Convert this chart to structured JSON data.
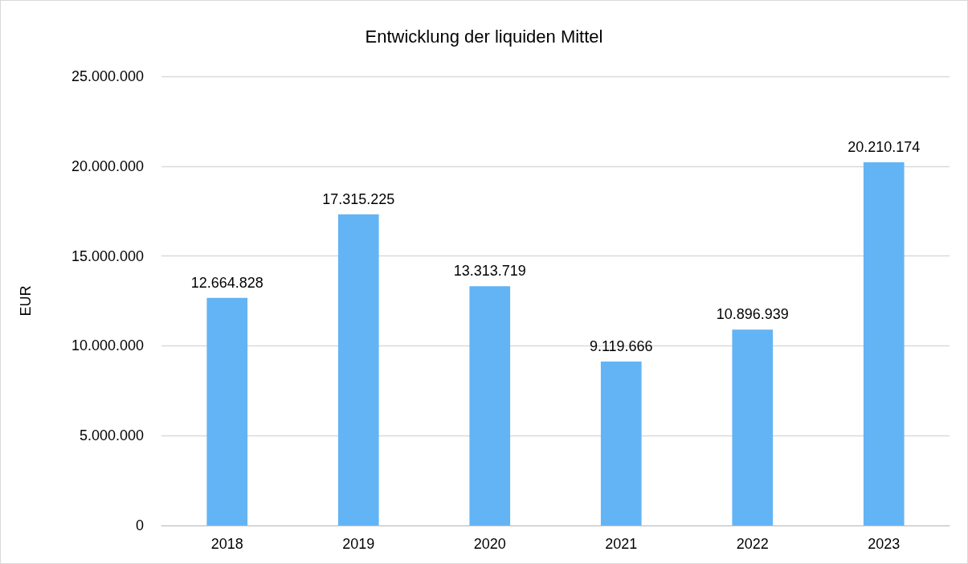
{
  "chart_data": {
    "type": "bar",
    "title": "Entwicklung der liquiden Mittel",
    "ylabel": "EUR",
    "categories": [
      "2018",
      "2019",
      "2020",
      "2021",
      "2022",
      "2023"
    ],
    "values": [
      12664828,
      17315225,
      13313719,
      9119666,
      10896939,
      20210174
    ],
    "value_labels": [
      "12.664.828",
      "17.315.225",
      "13.313.719",
      "9.119.666",
      "10.896.939",
      "20.210.174"
    ],
    "color": "#63b4f5",
    "ylim": [
      0,
      25000000
    ],
    "yticks": [
      0,
      {
        "value": 5000000,
        "label": "5.000.000"
      },
      {
        "value": 10000000,
        "label": "10.000.000"
      },
      {
        "value": 15000000,
        "label": "15.000.000"
      },
      {
        "value": 20000000,
        "label": "20.000.000"
      },
      {
        "value": 25000000,
        "label": "25.000.000"
      }
    ],
    "grid": "y"
  }
}
